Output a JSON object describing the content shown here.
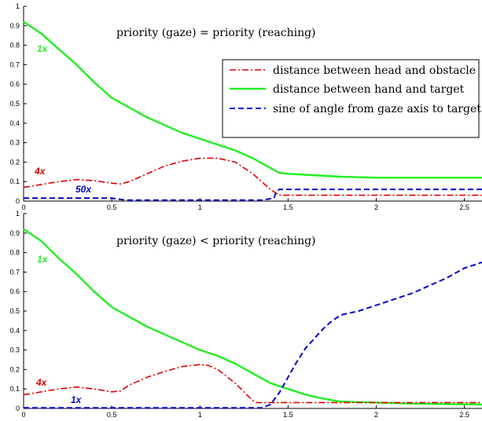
{
  "colors": {
    "red": "#dd0000",
    "green": "#22ee22",
    "blue": "#0000cc",
    "axis": "#000000"
  },
  "chart_data": [
    {
      "type": "line",
      "title": "priority (gaze) = priority (reaching)",
      "xlabel": "",
      "ylabel": "",
      "xlim": [
        0,
        2.6
      ],
      "ylim": [
        0,
        1
      ],
      "xticks": [
        "0",
        "0.5",
        "1",
        "1.5",
        "2",
        "2.5"
      ],
      "xtick_values": [
        0,
        0.5,
        1,
        1.5,
        2,
        2.5
      ],
      "yticks": [
        "0",
        "0.1",
        "0.2",
        "0.3",
        "0.4",
        "0.5",
        "0.6",
        "0.7",
        "0.8",
        "0.9",
        "1"
      ],
      "ytick_values": [
        0,
        0.1,
        0.2,
        0.3,
        0.4,
        0.5,
        0.6,
        0.7,
        0.8,
        0.9,
        1
      ],
      "grid": false,
      "legend_position": "top-right",
      "series": [
        {
          "name": "distance between head and obstacle",
          "color_key": "red",
          "style": "dashdot",
          "scale_label": "4x",
          "x": [
            0,
            0.1,
            0.2,
            0.3,
            0.4,
            0.5,
            0.55,
            0.6,
            0.7,
            0.8,
            0.9,
            1.0,
            1.1,
            1.2,
            1.3,
            1.4,
            1.45,
            1.5,
            2.0,
            2.6
          ],
          "y": [
            0.07,
            0.085,
            0.1,
            0.11,
            0.105,
            0.092,
            0.088,
            0.1,
            0.14,
            0.18,
            0.205,
            0.22,
            0.22,
            0.2,
            0.14,
            0.06,
            0.03,
            0.03,
            0.03,
            0.03
          ]
        },
        {
          "name": "distance between hand and target",
          "color_key": "green",
          "style": "solid",
          "scale_label": "1x",
          "x": [
            0,
            0.1,
            0.2,
            0.3,
            0.4,
            0.5,
            0.6,
            0.7,
            0.8,
            0.9,
            1.0,
            1.1,
            1.2,
            1.3,
            1.4,
            1.45,
            1.5,
            1.6,
            1.8,
            2.0,
            2.6
          ],
          "y": [
            0.92,
            0.86,
            0.78,
            0.7,
            0.61,
            0.53,
            0.48,
            0.43,
            0.39,
            0.35,
            0.32,
            0.29,
            0.26,
            0.22,
            0.17,
            0.145,
            0.14,
            0.135,
            0.125,
            0.12,
            0.12
          ]
        },
        {
          "name": "sine of angle from gaze axis to target",
          "color_key": "blue",
          "style": "dashed",
          "scale_label": "50x",
          "x": [
            0,
            0.5,
            0.58,
            0.6,
            1.35,
            1.42,
            1.43,
            1.45,
            2.0,
            2.6
          ],
          "y": [
            0.015,
            0.015,
            0.005,
            0.005,
            0.005,
            0.015,
            0.04,
            0.06,
            0.06,
            0.06
          ]
        }
      ]
    },
    {
      "type": "line",
      "title": "priority (gaze) < priority (reaching)",
      "xlabel": "",
      "ylabel": "",
      "xlim": [
        0,
        2.6
      ],
      "ylim": [
        0,
        1
      ],
      "xticks": [
        "0",
        "0.5",
        "1",
        "1.5",
        "2",
        "2.5"
      ],
      "xtick_values": [
        0,
        0.5,
        1,
        1.5,
        2,
        2.5
      ],
      "yticks": [
        "0",
        "0.1",
        "0.2",
        "0.3",
        "0.4",
        "0.5",
        "0.6",
        "0.7",
        "0.8",
        "0.9",
        "1"
      ],
      "ytick_values": [
        0,
        0.1,
        0.2,
        0.3,
        0.4,
        0.5,
        0.6,
        0.7,
        0.8,
        0.9,
        1
      ],
      "grid": false,
      "series": [
        {
          "color_key": "red",
          "style": "dashdot",
          "scale_label": "4x",
          "x": [
            0,
            0.1,
            0.2,
            0.3,
            0.4,
            0.5,
            0.55,
            0.6,
            0.7,
            0.8,
            0.9,
            1.0,
            1.05,
            1.1,
            1.2,
            1.3,
            1.32,
            1.4,
            2.0,
            2.6
          ],
          "y": [
            0.07,
            0.085,
            0.1,
            0.11,
            0.1,
            0.085,
            0.09,
            0.12,
            0.16,
            0.19,
            0.215,
            0.225,
            0.22,
            0.2,
            0.13,
            0.04,
            0.03,
            0.03,
            0.03,
            0.03
          ]
        },
        {
          "color_key": "green",
          "style": "solid",
          "scale_label": "1x",
          "x": [
            0,
            0.1,
            0.2,
            0.3,
            0.4,
            0.5,
            0.6,
            0.7,
            0.8,
            0.9,
            1.0,
            1.1,
            1.2,
            1.3,
            1.4,
            1.5,
            1.6,
            1.7,
            1.8,
            2.0,
            2.2,
            2.6
          ],
          "y": [
            0.92,
            0.86,
            0.77,
            0.69,
            0.6,
            0.52,
            0.47,
            0.42,
            0.38,
            0.34,
            0.3,
            0.27,
            0.23,
            0.18,
            0.13,
            0.1,
            0.07,
            0.05,
            0.035,
            0.03,
            0.025,
            0.02
          ]
        },
        {
          "color_key": "blue",
          "style": "dashed",
          "scale_label": "1x",
          "x": [
            0,
            1.35,
            1.4,
            1.45,
            1.5,
            1.55,
            1.6,
            1.65,
            1.7,
            1.75,
            1.8,
            1.9,
            2.0,
            2.1,
            2.2,
            2.3,
            2.4,
            2.5,
            2.6
          ],
          "y": [
            0.003,
            0.003,
            0.02,
            0.08,
            0.16,
            0.24,
            0.31,
            0.36,
            0.41,
            0.45,
            0.48,
            0.5,
            0.53,
            0.56,
            0.59,
            0.63,
            0.67,
            0.72,
            0.75
          ]
        }
      ]
    }
  ]
}
